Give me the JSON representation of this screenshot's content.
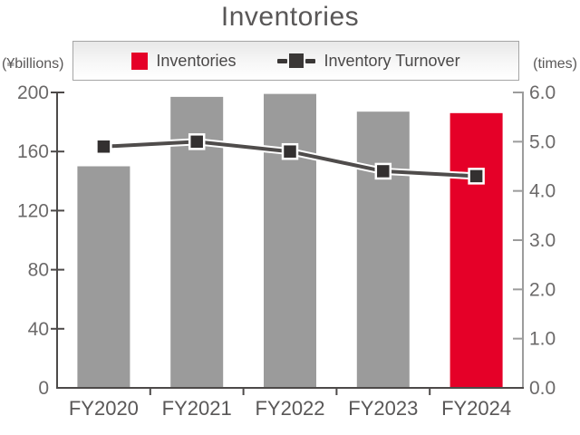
{
  "title": "Inventories",
  "legend": {
    "items": [
      {
        "label": "Inventories",
        "marker": "square-swatch",
        "color": "#e50028"
      },
      {
        "label": "Inventory Turnover",
        "marker": "dash-square-dash",
        "color": "#3a3736"
      }
    ]
  },
  "chart_data": {
    "type": "bar+line",
    "title": "Inventories",
    "categories": [
      "FY2020",
      "FY2021",
      "FY2022",
      "FY2023",
      "FY2024"
    ],
    "series": [
      {
        "name": "Inventories",
        "type": "bar",
        "axis": "left",
        "values": [
          150,
          197,
          199,
          187,
          186
        ],
        "bar_colors": [
          "#9b9b9b",
          "#9b9b9b",
          "#9b9b9b",
          "#9b9b9b",
          "#e50028"
        ]
      },
      {
        "name": "Inventory Turnover",
        "type": "line",
        "axis": "right",
        "values": [
          4.9,
          5.0,
          4.8,
          4.4,
          4.3
        ],
        "line_color": "#4f4c4b",
        "marker": "filled-square",
        "marker_color": "#333030"
      }
    ],
    "left_axis": {
      "label": "(¥billions)",
      "min": 0,
      "max": 200,
      "step": 40,
      "ticks": [
        "0",
        "40",
        "80",
        "120",
        "160",
        "200"
      ]
    },
    "right_axis": {
      "label": "(times)",
      "min": 0,
      "max": 6,
      "step": 1,
      "ticks": [
        "0.0",
        "1.0",
        "2.0",
        "3.0",
        "4.0",
        "5.0",
        "6.0"
      ]
    },
    "legend_position": "top",
    "grid": false
  },
  "colors": {
    "bar_gray": "#9b9b9b",
    "accent_red": "#e50028",
    "axis_dark": "#4d4a49",
    "axis_light": "#9c9c9c",
    "text_dark": "#595757",
    "text_mid": "#6b6969",
    "legend_border": "#a5a5a5"
  }
}
